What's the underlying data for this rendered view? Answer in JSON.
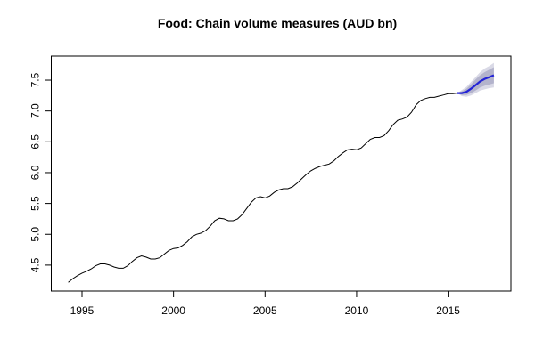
{
  "chart_data": {
    "type": "line",
    "title": "Food: Chain volume measures (AUD bn)",
    "xlim": [
      1993.32,
      2018.43
    ],
    "ylim": [
      4.08,
      7.89
    ],
    "xticks": [
      1995,
      2000,
      2005,
      2010,
      2015
    ],
    "yticks": [
      4.5,
      {
        "value": 5,
        "label": "5.0"
      },
      5.5,
      {
        "value": 6,
        "label": "6.0"
      },
      6.5,
      {
        "value": 7,
        "label": "7.0"
      },
      7.5
    ],
    "bands": [
      {
        "color": "#d9d9e6",
        "x": [
          2015.5,
          2015.75,
          2016,
          2016.25,
          2016.5,
          2016.75,
          2017,
          2017.25,
          2017.5
        ],
        "lower": [
          7.29,
          7.24,
          7.23,
          7.25,
          7.29,
          7.33,
          7.35,
          7.37,
          7.38
        ],
        "upper": [
          7.29,
          7.34,
          7.39,
          7.47,
          7.55,
          7.63,
          7.69,
          7.73,
          7.78
        ]
      },
      {
        "color": "#b3b3cc",
        "x": [
          2015.5,
          2015.75,
          2016,
          2016.25,
          2016.5,
          2016.75,
          2017,
          2017.25,
          2017.5
        ],
        "lower": [
          7.29,
          7.26,
          7.26,
          7.29,
          7.33,
          7.38,
          7.41,
          7.43,
          7.45
        ],
        "upper": [
          7.29,
          7.32,
          7.36,
          7.43,
          7.51,
          7.58,
          7.63,
          7.67,
          7.71
        ]
      }
    ],
    "series": [
      {
        "color": "#000000",
        "x": [
          1994.25,
          1994.5,
          1994.75,
          1995,
          1995.25,
          1995.5,
          1995.75,
          1996,
          1996.25,
          1996.5,
          1996.75,
          1997,
          1997.25,
          1997.5,
          1997.75,
          1998,
          1998.25,
          1998.5,
          1998.75,
          1999,
          1999.25,
          1999.5,
          1999.75,
          2000,
          2000.25,
          2000.5,
          2000.75,
          2001,
          2001.25,
          2001.5,
          2001.75,
          2002,
          2002.25,
          2002.5,
          2002.75,
          2003,
          2003.25,
          2003.5,
          2003.75,
          2004,
          2004.25,
          2004.5,
          2004.75,
          2005,
          2005.25,
          2005.5,
          2005.75,
          2006,
          2006.25,
          2006.5,
          2006.75,
          2007,
          2007.25,
          2007.5,
          2007.75,
          2008,
          2008.25,
          2008.5,
          2008.75,
          2009,
          2009.25,
          2009.5,
          2009.75,
          2010,
          2010.25,
          2010.5,
          2010.75,
          2011,
          2011.25,
          2011.5,
          2011.75,
          2012,
          2012.25,
          2012.5,
          2012.75,
          2013,
          2013.25,
          2013.5,
          2013.75,
          2014,
          2014.25,
          2014.5,
          2014.75,
          2015,
          2015.25,
          2015.5
        ],
        "values": [
          4.22,
          4.28,
          4.33,
          4.37,
          4.4,
          4.44,
          4.49,
          4.52,
          4.52,
          4.5,
          4.47,
          4.45,
          4.45,
          4.49,
          4.56,
          4.62,
          4.65,
          4.63,
          4.6,
          4.6,
          4.62,
          4.68,
          4.74,
          4.77,
          4.78,
          4.82,
          4.88,
          4.96,
          5.0,
          5.02,
          5.06,
          5.13,
          5.22,
          5.26,
          5.25,
          5.22,
          5.22,
          5.25,
          5.32,
          5.42,
          5.52,
          5.59,
          5.61,
          5.59,
          5.62,
          5.68,
          5.72,
          5.74,
          5.74,
          5.77,
          5.83,
          5.9,
          5.97,
          6.03,
          6.07,
          6.1,
          6.12,
          6.14,
          6.19,
          6.26,
          6.32,
          6.37,
          6.38,
          6.37,
          6.4,
          6.47,
          6.54,
          6.57,
          6.57,
          6.6,
          6.68,
          6.78,
          6.85,
          6.87,
          6.9,
          6.98,
          7.1,
          7.17,
          7.2,
          7.22,
          7.22,
          7.24,
          7.26,
          7.28,
          7.28,
          7.29
        ]
      },
      {
        "color": "#2323d6",
        "x": [
          2015.5,
          2015.75,
          2016,
          2016.25,
          2016.5,
          2016.75,
          2017,
          2017.25,
          2017.5
        ],
        "values": [
          7.29,
          7.29,
          7.31,
          7.36,
          7.42,
          7.48,
          7.52,
          7.55,
          7.58
        ]
      }
    ]
  }
}
